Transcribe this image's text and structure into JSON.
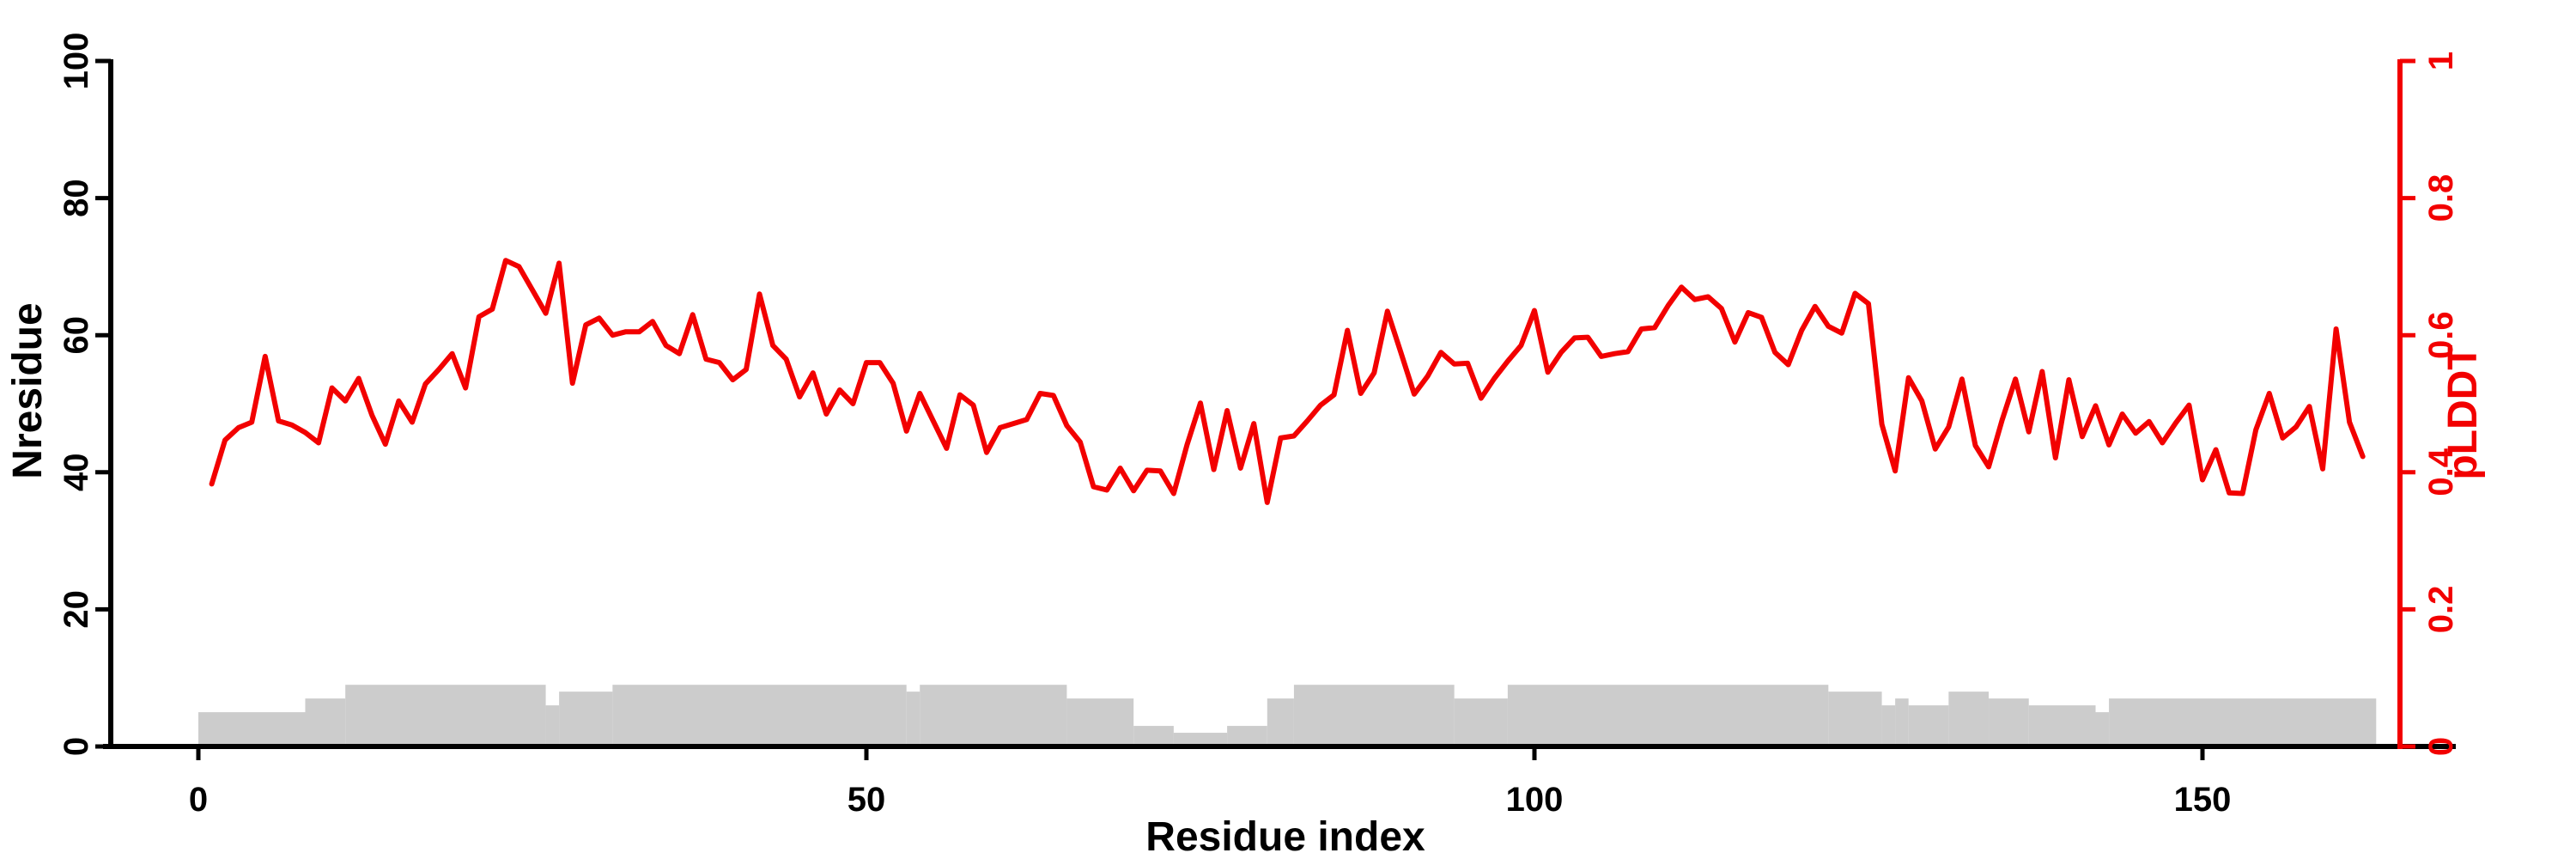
{
  "chart_data": {
    "type": "line",
    "title": "",
    "background": "#ffffff",
    "grid": false,
    "legend": false,
    "x_axis": {
      "label": "Residue index",
      "tick_labels": [
        "0",
        "50",
        "100",
        "150"
      ],
      "tick_values": [
        0,
        50,
        100,
        150
      ],
      "range": [
        0,
        169
      ]
    },
    "left_axis": {
      "label": "Nresidue",
      "color": "#000000",
      "tick_labels": [
        "0",
        "20",
        "40",
        "60",
        "80",
        "100"
      ],
      "tick_values": [
        0,
        20,
        40,
        60,
        80,
        100
      ],
      "lim": [
        0,
        100
      ]
    },
    "right_axis": {
      "label": "pLDDT",
      "color": "#f20000",
      "tick_labels": [
        "0",
        "0.2",
        "0.4",
        "0.6",
        "0.8",
        "1"
      ],
      "tick_values": [
        0,
        0.2,
        0.4,
        0.6,
        0.8,
        1
      ],
      "lim": [
        0,
        1
      ]
    },
    "series": [
      {
        "name": "pLDDT",
        "type": "line",
        "axis": "right",
        "color": "#f20000",
        "stroke_width": 6,
        "x_start_residue": 1,
        "x_step": 1,
        "values": [
          0.383,
          0.447,
          0.465,
          0.473,
          0.569,
          0.475,
          0.469,
          0.458,
          0.443,
          0.523,
          0.504,
          0.537,
          0.483,
          0.441,
          0.504,
          0.473,
          0.529,
          0.55,
          0.573,
          0.523,
          0.627,
          0.638,
          0.709,
          0.7,
          0.666,
          0.632,
          0.705,
          0.53,
          0.615,
          0.625,
          0.6,
          0.605,
          0.605,
          0.62,
          0.585,
          0.573,
          0.63,
          0.565,
          0.56,
          0.535,
          0.55,
          0.66,
          0.585,
          0.565,
          0.51,
          0.545,
          0.485,
          0.52,
          0.5,
          0.56,
          0.56,
          0.53,
          0.46,
          0.515,
          0.475,
          0.435,
          0.513,
          0.498,
          0.429,
          0.465,
          0.471,
          0.477,
          0.515,
          0.512,
          0.468,
          0.444,
          0.379,
          0.374,
          0.406,
          0.373,
          0.403,
          0.402,
          0.369,
          0.44,
          0.501,
          0.404,
          0.49,
          0.406,
          0.471,
          0.356,
          0.45,
          0.453,
          0.475,
          0.498,
          0.513,
          0.607,
          0.515,
          0.545,
          0.635,
          0.575,
          0.514,
          0.54,
          0.575,
          0.558,
          0.559,
          0.508,
          0.537,
          0.562,
          0.585,
          0.636,
          0.546,
          0.575,
          0.596,
          0.597,
          0.569,
          0.573,
          0.576,
          0.609,
          0.611,
          0.643,
          0.67,
          0.652,
          0.656,
          0.639,
          0.59,
          0.633,
          0.626,
          0.575,
          0.557,
          0.607,
          0.642,
          0.613,
          0.603,
          0.661,
          0.646,
          0.47,
          0.402,
          0.538,
          0.504,
          0.434,
          0.466,
          0.536,
          0.439,
          0.408,
          0.476,
          0.536,
          0.459,
          0.547,
          0.421,
          0.535,
          0.452,
          0.497,
          0.44,
          0.485,
          0.457,
          0.474,
          0.443,
          0.472,
          0.498,
          0.389,
          0.433,
          0.37,
          0.369,
          0.462,
          0.515,
          0.45,
          0.466,
          0.496,
          0.405,
          0.609,
          0.473,
          0.423
        ]
      },
      {
        "name": "Nresidue",
        "type": "bar-steps",
        "axis": "left",
        "color": "#cccccc",
        "segments_from_to_height": [
          [
            0,
            8,
            5
          ],
          [
            8,
            11,
            7
          ],
          [
            11,
            26,
            9
          ],
          [
            26,
            27,
            6
          ],
          [
            27,
            31,
            8
          ],
          [
            31,
            53,
            9
          ],
          [
            53,
            54,
            8
          ],
          [
            54,
            65,
            9
          ],
          [
            65,
            70,
            7
          ],
          [
            70,
            73,
            3
          ],
          [
            73,
            77,
            2
          ],
          [
            77,
            80,
            3
          ],
          [
            80,
            82,
            7
          ],
          [
            82,
            94,
            9
          ],
          [
            94,
            98,
            7
          ],
          [
            98,
            122,
            9
          ],
          [
            122,
            126,
            8
          ],
          [
            126,
            127,
            6
          ],
          [
            127,
            128,
            7
          ],
          [
            128,
            131,
            6
          ],
          [
            131,
            134,
            8
          ],
          [
            134,
            137,
            7
          ],
          [
            137,
            142,
            6
          ],
          [
            142,
            143,
            5
          ],
          [
            143,
            163,
            7
          ]
        ]
      }
    ]
  }
}
